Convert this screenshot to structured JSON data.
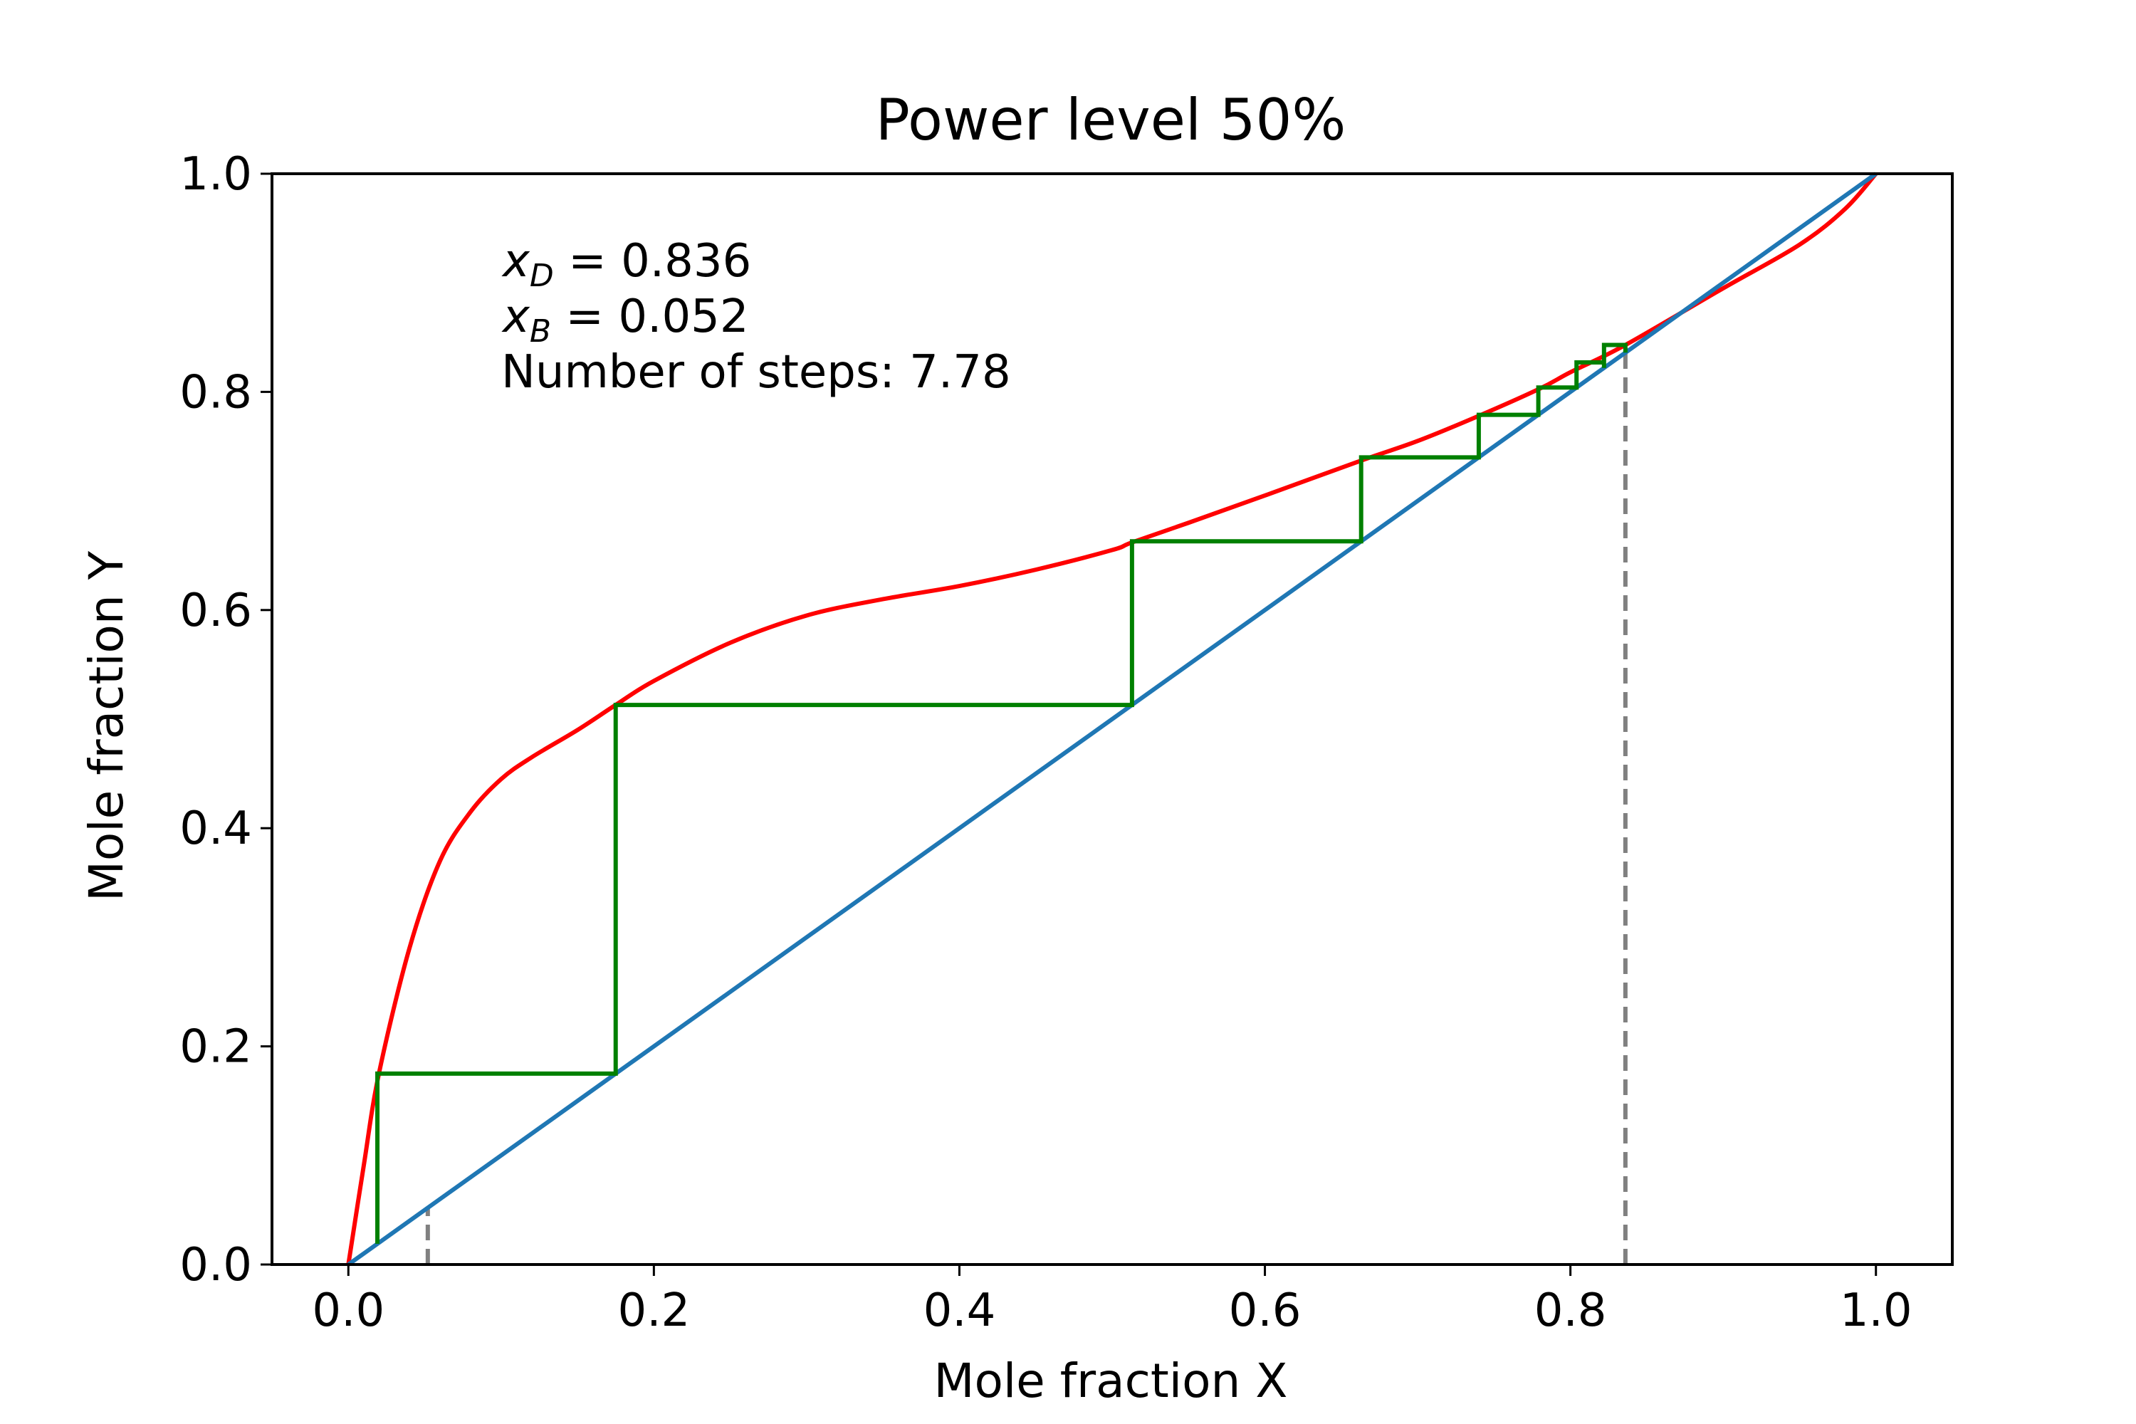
{
  "chart_data": {
    "type": "line",
    "title": "Power level 50%",
    "xlabel": "Mole fraction X",
    "ylabel": "Mole fraction Y",
    "xlim": [
      -0.05,
      1.05
    ],
    "ylim": [
      0.0,
      1.0
    ],
    "x_ticks": [
      "0.0",
      "0.2",
      "0.4",
      "0.6",
      "0.8",
      "1.0"
    ],
    "y_ticks": [
      "0.0",
      "0.2",
      "0.4",
      "0.6",
      "0.8",
      "1.0"
    ],
    "grid": false,
    "annotations": {
      "xd_symbol": "x",
      "xd_subscript": "D",
      "xd_value": " = 0.836",
      "xb_symbol": "x",
      "xb_subscript": "B",
      "xb_value": " = 0.052",
      "steps_text": "Number of steps: 7.78"
    },
    "colors": {
      "equilibrium": "#ff0000",
      "diagonal": "#1f77b4",
      "steps": "#008000",
      "markers": "#808080"
    },
    "x_D": 0.836,
    "x_B": 0.052,
    "series": [
      {
        "role": "equilibrium-curve",
        "color": "#ff0000",
        "points": [
          [
            0.0,
            0.0
          ],
          [
            0.01,
            0.09
          ],
          [
            0.02,
            0.175
          ],
          [
            0.04,
            0.29
          ],
          [
            0.06,
            0.37
          ],
          [
            0.08,
            0.415
          ],
          [
            0.1,
            0.445
          ],
          [
            0.12,
            0.465
          ],
          [
            0.15,
            0.49
          ],
          [
            0.175,
            0.513
          ],
          [
            0.2,
            0.535
          ],
          [
            0.25,
            0.57
          ],
          [
            0.3,
            0.595
          ],
          [
            0.35,
            0.61
          ],
          [
            0.4,
            0.622
          ],
          [
            0.45,
            0.637
          ],
          [
            0.5,
            0.655
          ],
          [
            0.513,
            0.662
          ],
          [
            0.55,
            0.68
          ],
          [
            0.6,
            0.705
          ],
          [
            0.663,
            0.737
          ],
          [
            0.7,
            0.755
          ],
          [
            0.74,
            0.778
          ],
          [
            0.78,
            0.803
          ],
          [
            0.8,
            0.818
          ],
          [
            0.836,
            0.843
          ],
          [
            0.9,
            0.895
          ],
          [
            0.95,
            0.935
          ],
          [
            0.98,
            0.968
          ],
          [
            1.0,
            1.0
          ]
        ]
      },
      {
        "role": "diagonal",
        "color": "#1f77b4",
        "points": [
          [
            0.0,
            0.0
          ],
          [
            1.0,
            1.0
          ]
        ]
      },
      {
        "role": "steps",
        "color": "#008000",
        "points": [
          [
            0.836,
            0.836
          ],
          [
            0.836,
            0.843
          ],
          [
            0.822,
            0.843
          ],
          [
            0.822,
            0.822
          ],
          [
            0.822,
            0.827
          ],
          [
            0.804,
            0.827
          ],
          [
            0.804,
            0.804
          ],
          [
            0.804,
            0.804
          ],
          [
            0.779,
            0.804
          ],
          [
            0.779,
            0.779
          ],
          [
            0.779,
            0.779
          ],
          [
            0.74,
            0.779
          ],
          [
            0.74,
            0.74
          ],
          [
            0.74,
            0.74
          ],
          [
            0.663,
            0.74
          ],
          [
            0.663,
            0.663
          ],
          [
            0.663,
            0.663
          ],
          [
            0.513,
            0.663
          ],
          [
            0.513,
            0.513
          ],
          [
            0.513,
            0.513
          ],
          [
            0.175,
            0.513
          ],
          [
            0.175,
            0.175
          ],
          [
            0.175,
            0.175
          ],
          [
            0.019,
            0.175
          ],
          [
            0.019,
            0.019
          ]
        ]
      },
      {
        "role": "x_D-marker",
        "color": "#808080",
        "points": [
          [
            0.836,
            0.0
          ],
          [
            0.836,
            0.836
          ]
        ]
      },
      {
        "role": "x_B-marker",
        "color": "#808080",
        "points": [
          [
            0.052,
            0.0
          ],
          [
            0.052,
            0.052
          ]
        ]
      }
    ]
  }
}
